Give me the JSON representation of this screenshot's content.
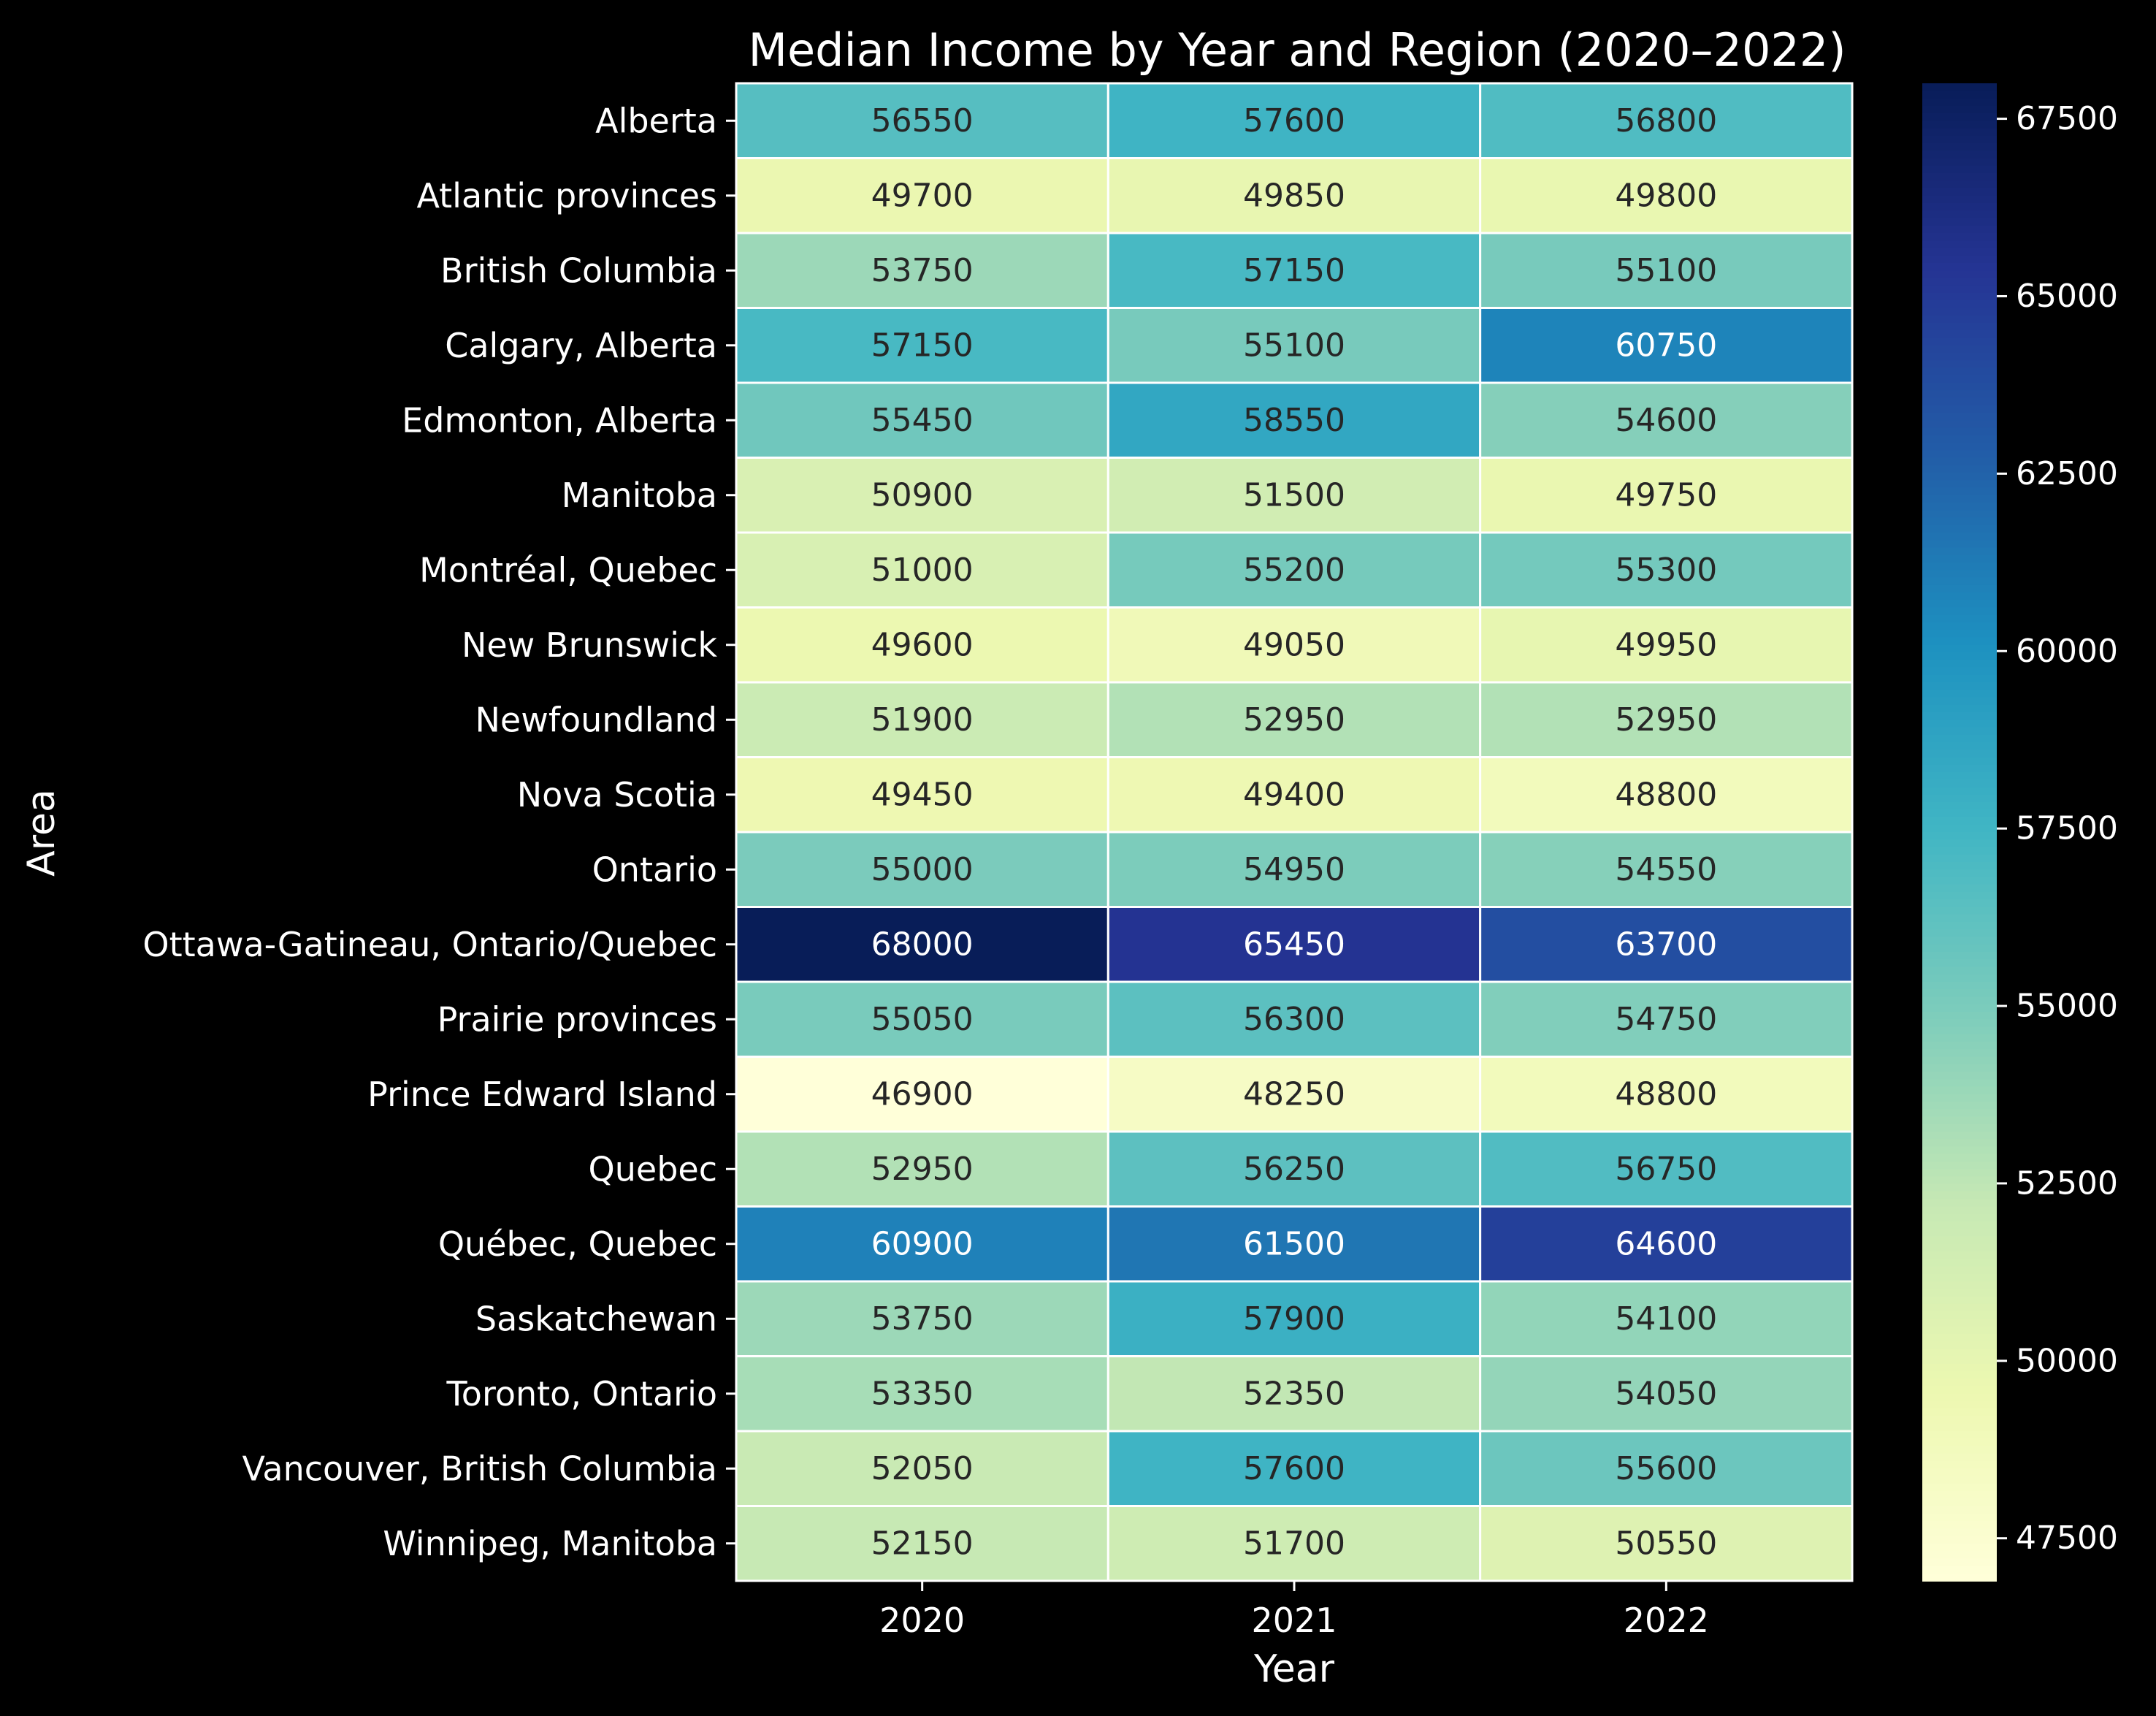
{
  "chart_data": {
    "type": "heatmap",
    "title": "Median Income by Year and Region (2020–2022)",
    "xlabel": "Year",
    "ylabel": "Area",
    "x": [
      "2020",
      "2021",
      "2022"
    ],
    "y": [
      "Alberta",
      "Atlantic provinces",
      "British Columbia",
      "Calgary, Alberta",
      "Edmonton, Alberta",
      "Manitoba",
      "Montréal, Quebec",
      "New Brunswick",
      "Newfoundland",
      "Nova Scotia",
      "Ontario",
      "Ottawa-Gatineau, Ontario/Quebec",
      "Prairie provinces",
      "Prince Edward Island",
      "Quebec",
      "Québec, Quebec",
      "Saskatchewan",
      "Toronto, Ontario",
      "Vancouver, British Columbia",
      "Winnipeg, Manitoba"
    ],
    "values": [
      [
        56550,
        57600,
        56800
      ],
      [
        49700,
        49850,
        49800
      ],
      [
        53750,
        57150,
        55100
      ],
      [
        57150,
        55100,
        60750
      ],
      [
        55450,
        58550,
        54600
      ],
      [
        50900,
        51500,
        49750
      ],
      [
        51000,
        55200,
        55300
      ],
      [
        49600,
        49050,
        49950
      ],
      [
        51900,
        52950,
        52950
      ],
      [
        49450,
        49400,
        48800
      ],
      [
        55000,
        54950,
        54550
      ],
      [
        68000,
        65450,
        63700
      ],
      [
        55050,
        56300,
        54750
      ],
      [
        46900,
        48250,
        48800
      ],
      [
        52950,
        56250,
        56750
      ],
      [
        60900,
        61500,
        64600
      ],
      [
        53750,
        57900,
        54100
      ],
      [
        53350,
        52350,
        54050
      ],
      [
        52050,
        57600,
        55600
      ],
      [
        52150,
        51700,
        50550
      ]
    ],
    "colorbar": {
      "colormap": "YlGnBu",
      "min": 46900,
      "max": 68000,
      "ticks": [
        47500,
        50000,
        52500,
        55000,
        57500,
        60000,
        62500,
        65000,
        67500
      ]
    },
    "grid": true,
    "legend": "colorbar-right"
  }
}
